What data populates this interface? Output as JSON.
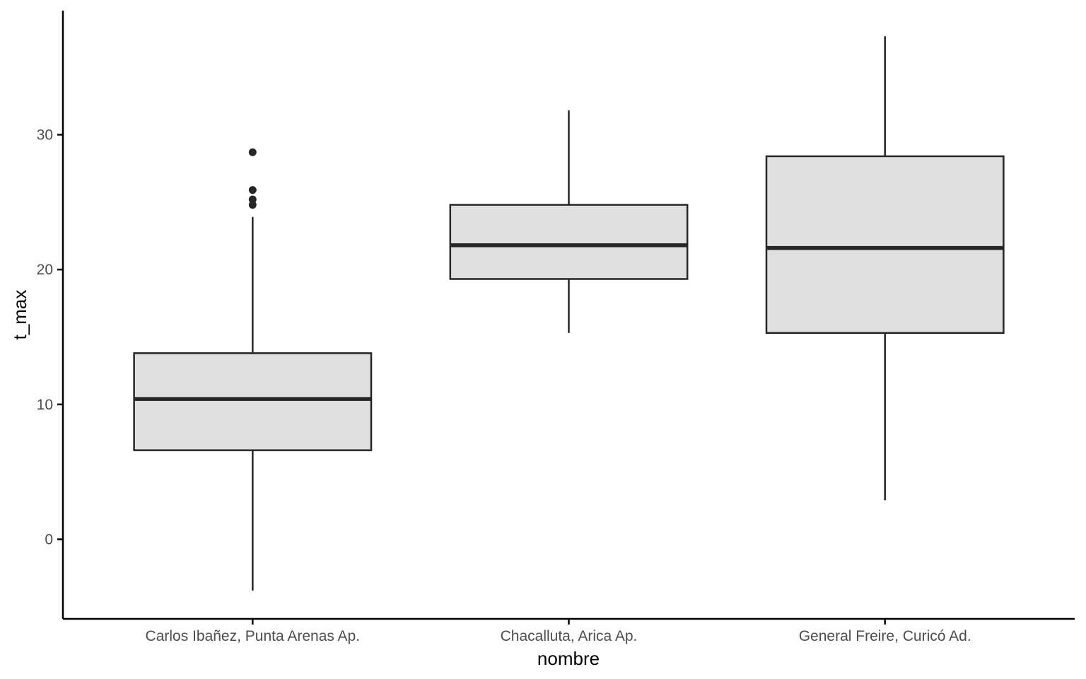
{
  "chart_data": {
    "type": "boxplot",
    "xlabel": "nombre",
    "ylabel": "t_max",
    "categories": [
      "Carlos Ibañez, Punta Arenas Ap.",
      "Chacalluta, Arica Ap.",
      "General Freire, Curicó Ad."
    ],
    "boxes": [
      {
        "category": "Carlos Ibañez, Punta Arenas Ap.",
        "whisker_low": -3.8,
        "q1": 6.6,
        "median": 10.4,
        "q3": 13.8,
        "whisker_high": 23.9,
        "outliers": [
          24.8,
          25.2,
          25.9,
          28.7
        ]
      },
      {
        "category": "Chacalluta, Arica Ap.",
        "whisker_low": 15.3,
        "q1": 19.3,
        "median": 21.8,
        "q3": 24.8,
        "whisker_high": 31.8
      },
      {
        "category": "General Freire, Curicó Ad.",
        "whisker_low": 2.9,
        "q1": 15.3,
        "median": 21.6,
        "q3": 28.4,
        "whisker_high": 37.3
      }
    ],
    "y_ticks": [
      0,
      10,
      20,
      30
    ],
    "ylim": [
      -5.9,
      39.2
    ],
    "grid": false,
    "legend": "none",
    "colors": {
      "box_fill": "#e0e0e0",
      "line": "#262626",
      "axis": "#000000",
      "tick_text": "#4d4d4d"
    }
  }
}
